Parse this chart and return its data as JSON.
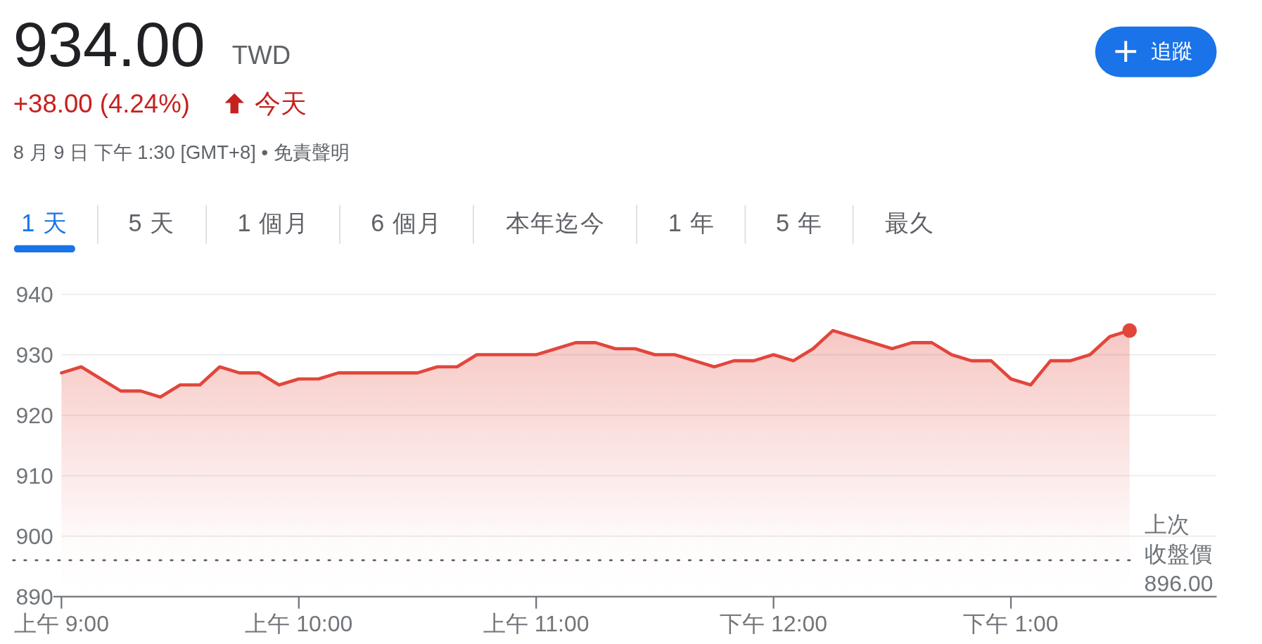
{
  "chart_data": {
    "type": "area",
    "title": "934.00",
    "subtitle": "+38.00 (4.24%)",
    "annotations": [
      "TWD",
      "今天",
      "8 月 9 日 下午 1:30 [GMT+8] • 免責聲明",
      "追蹤",
      "1 天",
      "5 天",
      "1 個月",
      "6 個月",
      "本年迄今",
      "1 年",
      "5 年",
      "最久"
    ],
    "categories": [
      "上午 9:00",
      null,
      null,
      null,
      null,
      null,
      null,
      null,
      null,
      null,
      null,
      null,
      "上午 10:00",
      null,
      null,
      null,
      null,
      null,
      null,
      null,
      null,
      null,
      null,
      null,
      "上午 11:00",
      null,
      null,
      null,
      null,
      null,
      null,
      null,
      null,
      null,
      null,
      null,
      "下午 12:00",
      null,
      null,
      null,
      null,
      null,
      null,
      null,
      null,
      null,
      null,
      null,
      "下午 1:00",
      null,
      null,
      null,
      null,
      null,
      null,
      null,
      null,
      null,
      null
    ],
    "series": [
      {
        "color": "#e2463b",
        "values": [
          927,
          928,
          926,
          924,
          924,
          923,
          925,
          925,
          928,
          927,
          927,
          925,
          926,
          926,
          927,
          927,
          927,
          927,
          927,
          928,
          928,
          930,
          930,
          930,
          930,
          931,
          932,
          932,
          931,
          931,
          930,
          930,
          929,
          928,
          929,
          929,
          930,
          929,
          931,
          934,
          933,
          932,
          931,
          932,
          932,
          930,
          929,
          929,
          926,
          925,
          929,
          929,
          930,
          933,
          934,
          null,
          null,
          null,
          null
        ]
      },
      {
        "type": "scatter",
        "color": "#e2463b",
        "values": [
          null,
          null,
          null,
          null,
          null,
          null,
          null,
          null,
          null,
          null,
          null,
          null,
          null,
          null,
          null,
          null,
          null,
          null,
          null,
          null,
          null,
          null,
          null,
          null,
          null,
          null,
          null,
          null,
          null,
          null,
          null,
          null,
          null,
          null,
          null,
          null,
          null,
          null,
          null,
          null,
          null,
          null,
          null,
          null,
          null,
          null,
          null,
          null,
          null,
          null,
          null,
          null,
          null,
          null,
          934,
          null,
          null,
          null,
          null
        ]
      }
    ],
    "ylim": [
      890,
      940
    ],
    "yticks": [
      890,
      900,
      910,
      920,
      930,
      940
    ],
    "grid": "y",
    "line_style": "solid",
    "ref_lines": [
      {
        "axis": "y",
        "value": 896,
        "label": "上次收盤價 896.00",
        "color": "#5f6368",
        "line_style": "dotted"
      }
    ]
  }
}
